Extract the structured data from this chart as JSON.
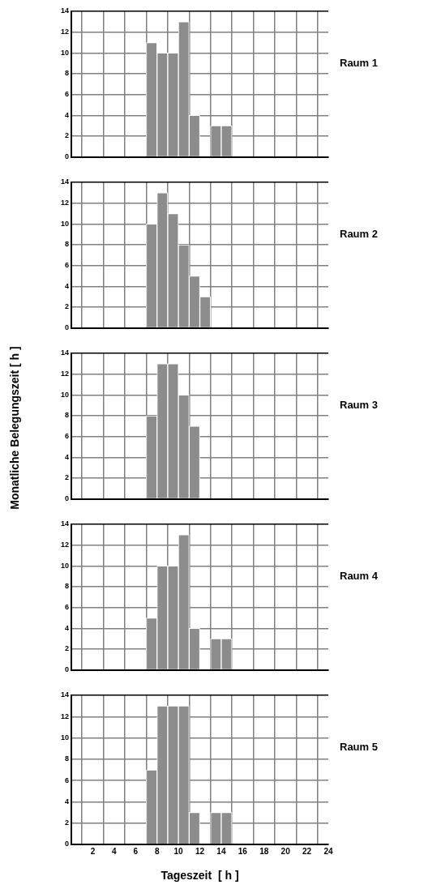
{
  "chart_data": [
    {
      "type": "histogram",
      "annotations": [
        "Raum 1"
      ],
      "bins": [
        7,
        8,
        9,
        10,
        11,
        12,
        13,
        14,
        15
      ],
      "values": [
        11,
        10,
        10,
        13,
        4,
        0,
        3,
        3
      ],
      "color": "#8c8c8c",
      "xlim": [
        0,
        24
      ],
      "xticks": [
        2,
        4,
        6,
        8,
        10,
        12,
        14,
        16,
        18,
        20,
        22,
        24
      ],
      "ylim": [
        0,
        14
      ],
      "yticks": [
        0,
        2,
        4,
        6,
        8,
        10,
        12,
        14
      ],
      "grid": true,
      "tick_labels": "y"
    },
    {
      "type": "histogram",
      "annotations": [
        "Raum 2"
      ],
      "bins": [
        7,
        8,
        9,
        10,
        11,
        12,
        13
      ],
      "values": [
        10,
        13,
        11,
        8,
        5,
        3
      ],
      "color": "#8c8c8c",
      "xlim": [
        0,
        24
      ],
      "xticks": [
        2,
        4,
        6,
        8,
        10,
        12,
        14,
        16,
        18,
        20,
        22,
        24
      ],
      "ylim": [
        0,
        14
      ],
      "yticks": [
        0,
        2,
        4,
        6,
        8,
        10,
        12,
        14
      ],
      "grid": true,
      "tick_labels": "y"
    },
    {
      "type": "histogram",
      "annotations": [
        "Raum 3"
      ],
      "ylabel": "Monatliche Belegungszeit  [ h ]",
      "bins": [
        7,
        8,
        9,
        10,
        11,
        12
      ],
      "values": [
        8,
        13,
        13,
        10,
        7
      ],
      "color": "#8c8c8c",
      "xlim": [
        0,
        24
      ],
      "xticks": [
        2,
        4,
        6,
        8,
        10,
        12,
        14,
        16,
        18,
        20,
        22,
        24
      ],
      "ylim": [
        0,
        14
      ],
      "yticks": [
        0,
        2,
        4,
        6,
        8,
        10,
        12,
        14
      ],
      "grid": true,
      "tick_labels": "y"
    },
    {
      "type": "histogram",
      "annotations": [
        "Raum 4"
      ],
      "bins": [
        7,
        8,
        9,
        10,
        11,
        12,
        13,
        14,
        15
      ],
      "values": [
        5,
        10,
        10,
        13,
        4,
        0,
        3,
        3
      ],
      "color": "#8c8c8c",
      "xlim": [
        0,
        24
      ],
      "xticks": [
        2,
        4,
        6,
        8,
        10,
        12,
        14,
        16,
        18,
        20,
        22,
        24
      ],
      "ylim": [
        0,
        14
      ],
      "yticks": [
        0,
        2,
        4,
        6,
        8,
        10,
        12,
        14
      ],
      "grid": true,
      "tick_labels": "y"
    },
    {
      "type": "histogram",
      "annotations": [
        "Raum 5"
      ],
      "xlabel": "Tageszeit  [ h ]",
      "bins": [
        7,
        8,
        9,
        10,
        11,
        12,
        13,
        14,
        15
      ],
      "values": [
        7,
        13,
        13,
        13,
        3,
        0,
        3,
        3
      ],
      "color": "#8c8c8c",
      "xlim": [
        0,
        24
      ],
      "xticks": [
        2,
        4,
        6,
        8,
        10,
        12,
        14,
        16,
        18,
        20,
        22,
        24
      ],
      "ylim": [
        0,
        14
      ],
      "yticks": [
        0,
        2,
        4,
        6,
        8,
        10,
        12,
        14
      ],
      "grid": true
    }
  ]
}
